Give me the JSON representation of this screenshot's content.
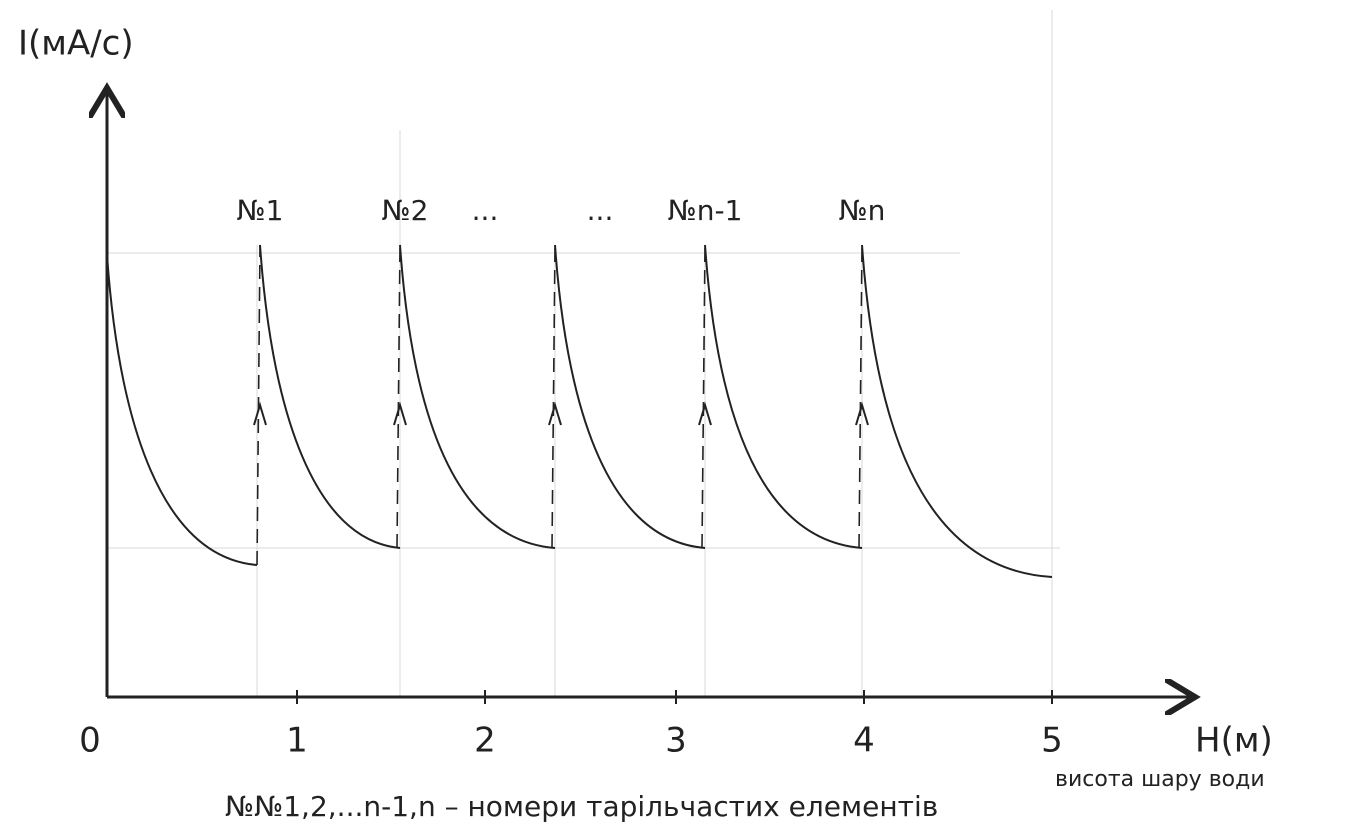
{
  "axes": {
    "y_label": "I(мА/с)",
    "x_label": "H(м)",
    "x_label_note": "висота шару води",
    "x_ticks": [
      "0",
      "1",
      "2",
      "3",
      "4",
      "5"
    ]
  },
  "element_labels": [
    "№1",
    "№2",
    "...",
    "...",
    "№n-1",
    "№n"
  ],
  "caption": "№№1,2,...n-1,n – номери тарільчастих елементів"
}
